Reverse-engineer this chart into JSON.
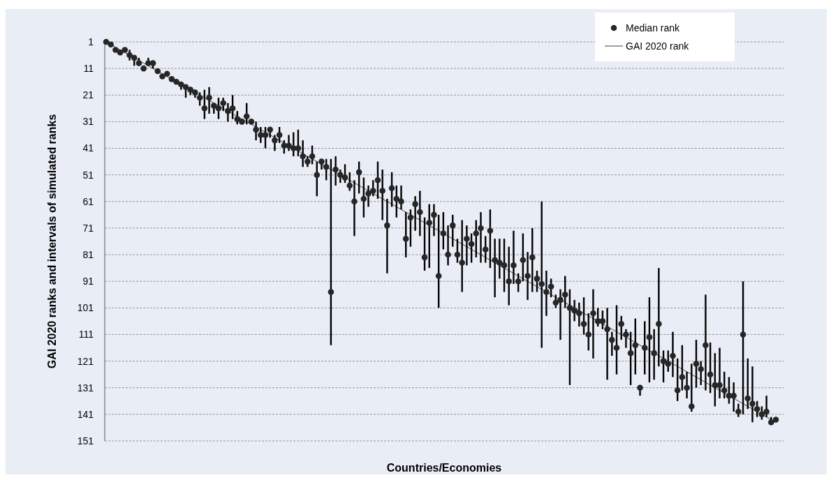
{
  "chart_data": {
    "type": "scatter",
    "xlabel": "Countries/Economies",
    "ylabel": "GAI 2020 ranks and intervals of simulated ranks",
    "categories": [
      null,
      null,
      null,
      null,
      null,
      null,
      null,
      null,
      null,
      null,
      null,
      null,
      null,
      null,
      null,
      null,
      null,
      null,
      null,
      null,
      null,
      null,
      null,
      null,
      null,
      null,
      null,
      null,
      null,
      null,
      null,
      null,
      null,
      null,
      null,
      null,
      null,
      null,
      null,
      null,
      null,
      null,
      null,
      null,
      null,
      null,
      null,
      null,
      null,
      null,
      null,
      null,
      null,
      null,
      null,
      null,
      null,
      null,
      null,
      null,
      null,
      null,
      null,
      null,
      null,
      null,
      null,
      null,
      null,
      null,
      null,
      null,
      null,
      null,
      null,
      null,
      null,
      null,
      null,
      null,
      null,
      null,
      null,
      null,
      null,
      null,
      null,
      null,
      null,
      null,
      null,
      null,
      null,
      null,
      null,
      null,
      null,
      null,
      null,
      null,
      null,
      null,
      null,
      null,
      null,
      null,
      null,
      null,
      null,
      null,
      null,
      null,
      null,
      null,
      null,
      null,
      null,
      null,
      null,
      null,
      null,
      null,
      null,
      null,
      null,
      null,
      null,
      null,
      null,
      null,
      null,
      null,
      null,
      null,
      null,
      null,
      null,
      null,
      null,
      null,
      null,
      null,
      null,
      null
    ],
    "ylim": [
      151,
      1
    ],
    "yticks": [
      1,
      11,
      21,
      31,
      41,
      51,
      61,
      71,
      81,
      91,
      101,
      111,
      121,
      131,
      141,
      151
    ],
    "grid": "y",
    "legend": "top right",
    "tick_labels": "y",
    "series": [
      {
        "name": "Median rank",
        "marker": "circle",
        "color": "#262626",
        "values": [
          1,
          2,
          4,
          5,
          4,
          6,
          7,
          9,
          11,
          9,
          9,
          12,
          14,
          13,
          15,
          16,
          17,
          18,
          19,
          20,
          22,
          26,
          22,
          25,
          26,
          24,
          27,
          26,
          30,
          31,
          29,
          31,
          34,
          36,
          36,
          34,
          38,
          36,
          40,
          40,
          41,
          41,
          44,
          46,
          44,
          51,
          46,
          48,
          95,
          49,
          51,
          52,
          55,
          61,
          50,
          60,
          58,
          57,
          53,
          57,
          70,
          56,
          60,
          61,
          75,
          67,
          62,
          65,
          82,
          69,
          66,
          89,
          73,
          81,
          70,
          81,
          84,
          75,
          77,
          73,
          71,
          79,
          72,
          83,
          84,
          85,
          91,
          85,
          91,
          83,
          89,
          82,
          90,
          92,
          95,
          93,
          99,
          98,
          96,
          101,
          102,
          103,
          107,
          111,
          103,
          106,
          106,
          109,
          113,
          116,
          107,
          111,
          118,
          115,
          131,
          116,
          112,
          118,
          107,
          121,
          122,
          119,
          132,
          127,
          131,
          138,
          122,
          124,
          115,
          126,
          130,
          130,
          132,
          134,
          134,
          140,
          111,
          135,
          137,
          139,
          141,
          140,
          144,
          143
        ],
        "errors": [
          null,
          null,
          null,
          null,
          null,
          [
            4,
            8
          ],
          [
            6,
            10
          ],
          [
            7,
            10
          ],
          null,
          [
            7,
            10
          ],
          [
            8,
            11
          ],
          null,
          null,
          null,
          null,
          null,
          [
            16,
            19
          ],
          [
            17,
            22
          ],
          [
            18,
            21
          ],
          [
            19,
            22
          ],
          [
            20,
            25
          ],
          [
            19,
            30
          ],
          [
            18,
            28
          ],
          [
            24,
            28
          ],
          [
            22,
            30
          ],
          [
            22,
            27
          ],
          [
            24,
            31
          ],
          [
            21,
            30
          ],
          [
            27,
            32
          ],
          [
            30,
            32
          ],
          [
            24,
            32
          ],
          [
            30,
            32
          ],
          [
            31,
            38
          ],
          [
            33,
            39
          ],
          [
            33,
            41
          ],
          [
            33,
            37
          ],
          [
            36,
            42
          ],
          [
            33,
            39
          ],
          [
            38,
            43
          ],
          [
            36,
            42
          ],
          [
            35,
            44
          ],
          [
            34,
            44
          ],
          [
            38,
            48
          ],
          [
            44,
            48
          ],
          [
            40,
            47
          ],
          [
            46,
            59
          ],
          [
            45,
            49
          ],
          [
            45,
            53
          ],
          [
            45,
            115
          ],
          [
            44,
            55
          ],
          [
            49,
            54
          ],
          [
            47,
            54
          ],
          [
            50,
            57
          ],
          [
            53,
            74
          ],
          [
            46,
            58
          ],
          [
            52,
            67
          ],
          [
            55,
            63
          ],
          [
            53,
            59
          ],
          [
            46,
            60
          ],
          [
            49,
            68
          ],
          [
            60,
            88
          ],
          [
            50,
            63
          ],
          [
            55,
            67
          ],
          [
            55,
            64
          ],
          [
            65,
            82
          ],
          [
            64,
            78
          ],
          [
            59,
            72
          ],
          [
            57,
            74
          ],
          [
            67,
            87
          ],
          [
            62,
            86
          ],
          [
            62,
            74
          ],
          [
            66,
            101
          ],
          [
            65,
            79
          ],
          [
            70,
            85
          ],
          [
            66,
            78
          ],
          [
            75,
            84
          ],
          [
            68,
            95
          ],
          [
            70,
            85
          ],
          [
            73,
            84
          ],
          [
            68,
            82
          ],
          [
            65,
            84
          ],
          [
            74,
            84
          ],
          [
            64,
            86
          ],
          [
            75,
            97
          ],
          [
            75,
            90
          ],
          [
            75,
            95
          ],
          [
            78,
            100
          ],
          [
            72,
            92
          ],
          [
            88,
            95
          ],
          [
            73,
            91
          ],
          [
            80,
            98
          ],
          [
            71,
            95
          ],
          [
            87,
            95
          ],
          [
            61,
            116
          ],
          [
            87,
            104
          ],
          [
            90,
            97
          ],
          [
            96,
            101
          ],
          [
            94,
            113
          ],
          [
            89,
            101
          ],
          [
            94,
            130
          ],
          [
            98,
            106
          ],
          [
            99,
            108
          ],
          [
            97,
            111
          ],
          [
            103,
            117
          ],
          [
            94,
            120
          ],
          [
            101,
            108
          ],
          [
            102,
            109
          ],
          [
            101,
            128
          ],
          [
            110,
            119
          ],
          [
            100,
            126
          ],
          [
            104,
            113
          ],
          [
            109,
            116
          ],
          [
            110,
            130
          ],
          [
            105,
            126
          ],
          [
            130,
            134
          ],
          [
            106,
            126
          ],
          [
            97,
            129
          ],
          [
            109,
            128
          ],
          [
            86,
            123
          ],
          [
            117,
            129
          ],
          [
            117,
            125
          ],
          [
            110,
            127
          ],
          [
            120,
            136
          ],
          [
            115,
            132
          ],
          [
            125,
            135
          ],
          [
            122,
            140
          ],
          [
            113,
            131
          ],
          [
            121,
            130
          ],
          [
            96,
            132
          ],
          [
            114,
            133
          ],
          [
            118,
            138
          ],
          [
            116,
            135
          ],
          [
            125,
            135
          ],
          [
            127,
            137
          ],
          [
            129,
            140
          ],
          [
            137,
            142
          ],
          [
            91,
            141
          ],
          [
            120,
            139
          ],
          [
            123,
            144
          ],
          [
            136,
            142
          ],
          [
            138,
            143
          ],
          [
            134,
            142
          ],
          [
            142,
            145
          ],
          null
        ]
      },
      {
        "name": "GAI 2020 rank",
        "type": "line",
        "line_style": "solid",
        "color": "#404040",
        "values": [
          1,
          2,
          3,
          4,
          5,
          6,
          7,
          8,
          9,
          10,
          11,
          12,
          13,
          14,
          15,
          16,
          17,
          18,
          19,
          20,
          21,
          22,
          23,
          24,
          25,
          26,
          27,
          28,
          29,
          30,
          31,
          32,
          33,
          34,
          35,
          36,
          37,
          38,
          39,
          40,
          41,
          42,
          43,
          44,
          45,
          46,
          47,
          48,
          49,
          50,
          51,
          52,
          53,
          54,
          55,
          56,
          57,
          58,
          59,
          60,
          61,
          62,
          63,
          64,
          65,
          66,
          67,
          68,
          69,
          70,
          71,
          72,
          73,
          74,
          75,
          76,
          77,
          78,
          79,
          80,
          81,
          82,
          83,
          84,
          85,
          86,
          87,
          88,
          89,
          90,
          91,
          92,
          93,
          94,
          95,
          96,
          97,
          98,
          99,
          100,
          101,
          102,
          103,
          104,
          105,
          106,
          107,
          108,
          109,
          110,
          111,
          112,
          113,
          114,
          115,
          116,
          117,
          118,
          119,
          120,
          121,
          122,
          123,
          124,
          125,
          126,
          127,
          128,
          129,
          130,
          131,
          132,
          133,
          134,
          135,
          136,
          137,
          138,
          139,
          140,
          141,
          142,
          143,
          144
        ]
      }
    ]
  }
}
